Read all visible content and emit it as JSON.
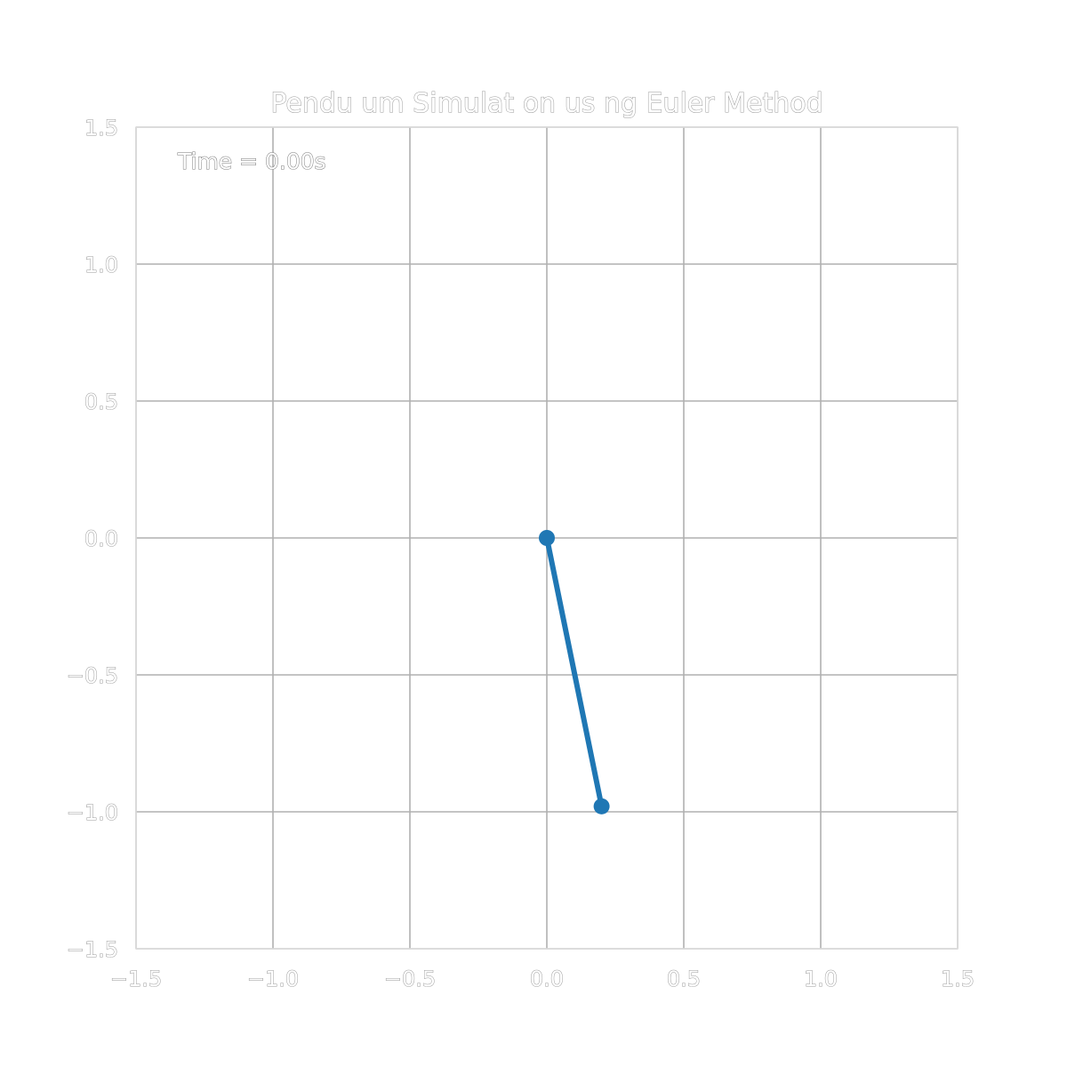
{
  "chart_data": {
    "type": "line",
    "title": "Pendu um Simulat on us ng Euler Method",
    "annotation": "Time = 0.00s",
    "xlim": [
      -1.5,
      1.5
    ],
    "ylim": [
      -1.5,
      1.5
    ],
    "xticks": [
      -1.5,
      -1.0,
      -0.5,
      0.0,
      0.5,
      1.0,
      1.5
    ],
    "yticks": [
      -1.5,
      -1.0,
      -0.5,
      0.0,
      0.5,
      1.0,
      1.5
    ],
    "xtick_labels": [
      "−1.5",
      "−1.0",
      "−0.5",
      "0.0",
      "0.5",
      "1.0",
      "1.5"
    ],
    "ytick_labels": [
      "−1.5",
      "−1.0",
      "−0.5",
      "0.0",
      "0.5",
      "1.0",
      "1.5"
    ],
    "grid": true,
    "series": [
      {
        "x": [
          0.0,
          0.2
        ],
        "y": [
          0.0,
          -0.98
        ],
        "color": "#1f77b4",
        "marker": "circle"
      }
    ]
  }
}
